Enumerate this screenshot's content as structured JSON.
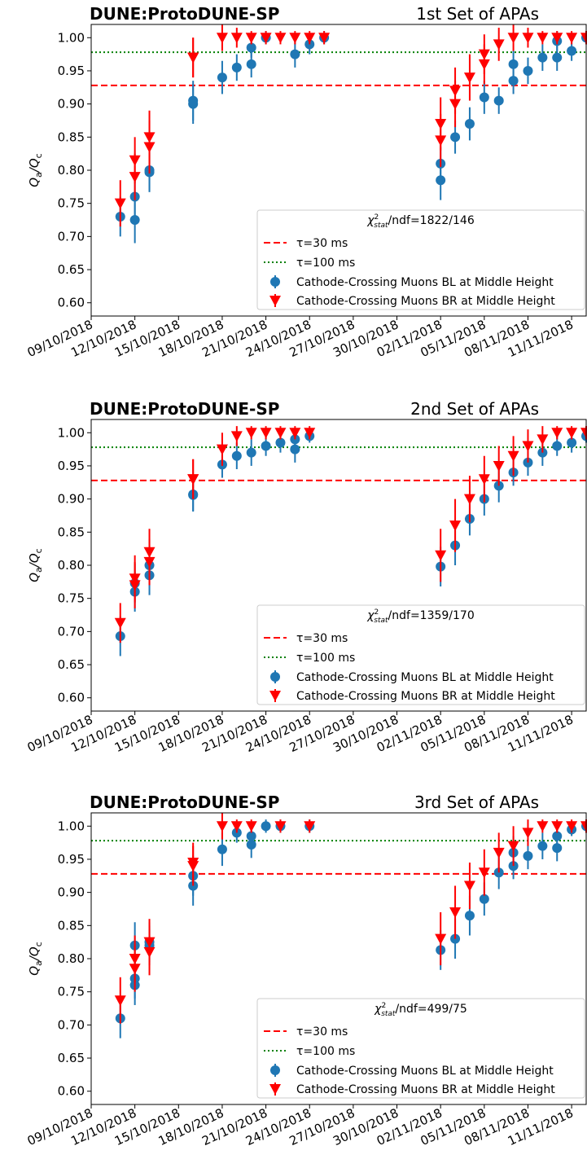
{
  "chart_data": [
    {
      "type": "scatter",
      "title": "DUNE:ProtoDUNE-SP",
      "subtitle": "1st Set of APAs",
      "ylabel": [
        "Q",
        "a",
        "/Q",
        "c"
      ],
      "xlim": [
        "09/10/2018",
        "12/11/2018"
      ],
      "xticks": [
        "09/10/2018",
        "12/10/2018",
        "15/10/2018",
        "18/10/2018",
        "21/10/2018",
        "24/10/2018",
        "27/10/2018",
        "30/10/2018",
        "02/11/2018",
        "05/11/2018",
        "08/11/2018",
        "11/11/2018"
      ],
      "ylim": [
        0.58,
        1.02
      ],
      "yticks": [
        {
          "value": 0.6,
          "label": "0.60"
        },
        0.65,
        {
          "value": 0.7,
          "label": "0.70"
        },
        0.75,
        {
          "value": 0.8,
          "label": "0.80"
        },
        0.85,
        {
          "value": 0.9,
          "label": "0.90"
        },
        0.95,
        {
          "value": 1.0,
          "label": "1.00"
        }
      ],
      "legend": "lower right",
      "annotation": {
        "symbol": "χ",
        "sup": "2",
        "sub": "stat",
        "text": "/ndf=1822/146"
      },
      "hlines": [
        {
          "name": "τ=30 ms",
          "value": 0.928,
          "color": "red",
          "style": "dashed"
        },
        {
          "name": "τ=100 ms",
          "value": 0.978,
          "color": "green",
          "style": "dotted"
        }
      ],
      "series": [
        {
          "name": "Cathode-Crossing Muons BL at Middle Height",
          "color": "#1f77b4",
          "marker": "circle",
          "x": [
            "11/10/2018",
            "12/10/2018",
            "12/10/2018",
            "13/10/2018",
            "13/10/2018",
            "16/10/2018",
            "16/10/2018",
            "18/10/2018",
            "19/10/2018",
            "20/10/2018",
            "20/10/2018",
            "21/10/2018",
            "23/10/2018",
            "24/10/2018",
            "25/10/2018",
            "02/11/2018",
            "02/11/2018",
            "03/11/2018",
            "04/11/2018",
            "05/11/2018",
            "06/11/2018",
            "07/11/2018",
            "07/11/2018",
            "08/11/2018",
            "09/11/2018",
            "10/11/2018",
            "10/11/2018",
            "11/11/2018",
            "12/11/2018"
          ],
          "values": [
            0.73,
            0.725,
            0.76,
            0.8,
            0.797,
            0.9,
            0.905,
            0.94,
            0.955,
            0.96,
            0.985,
            1.0,
            0.975,
            0.99,
            1.0,
            0.785,
            0.81,
            0.85,
            0.87,
            0.91,
            0.905,
            0.935,
            0.96,
            0.95,
            0.97,
            0.995,
            0.97,
            0.98,
            1.0
          ],
          "errors": [
            0.03,
            0.035,
            0.03,
            0.03,
            0.03,
            0.03,
            0.03,
            0.025,
            0.02,
            0.02,
            0.015,
            0.01,
            0.02,
            0.015,
            0.01,
            0.03,
            0.025,
            0.025,
            0.025,
            0.025,
            0.02,
            0.02,
            0.02,
            0.02,
            0.02,
            0.015,
            0.02,
            0.015,
            0.01
          ]
        },
        {
          "name": "Cathode-Crossing Muons BR at Middle Height",
          "color": "red",
          "marker": "triangle",
          "x": [
            "11/10/2018",
            "12/10/2018",
            "12/10/2018",
            "13/10/2018",
            "13/10/2018",
            "16/10/2018",
            "16/10/2018",
            "18/10/2018",
            "19/10/2018",
            "20/10/2018",
            "21/10/2018",
            "22/10/2018",
            "23/10/2018",
            "24/10/2018",
            "25/10/2018",
            "02/11/2018",
            "02/11/2018",
            "03/11/2018",
            "03/11/2018",
            "04/11/2018",
            "05/11/2018",
            "05/11/2018",
            "06/11/2018",
            "07/11/2018",
            "08/11/2018",
            "09/11/2018",
            "10/11/2018",
            "11/11/2018",
            "12/11/2018"
          ],
          "values": [
            0.75,
            0.79,
            0.815,
            0.85,
            0.835,
            0.97,
            0.97,
            1.0,
            1.0,
            1.0,
            1.0,
            1.0,
            1.0,
            1.0,
            1.0,
            0.845,
            0.87,
            0.9,
            0.92,
            0.94,
            0.96,
            0.975,
            0.99,
            1.0,
            1.0,
            1.0,
            1.0,
            1.0,
            1.0
          ],
          "errors": [
            0.035,
            0.035,
            0.035,
            0.04,
            0.04,
            0.03,
            0.03,
            0.02,
            0.015,
            0.01,
            0.01,
            0.01,
            0.01,
            0.01,
            0.01,
            0.04,
            0.04,
            0.035,
            0.035,
            0.035,
            0.03,
            0.03,
            0.025,
            0.02,
            0.015,
            0.01,
            0.01,
            0.01,
            0.01
          ]
        }
      ]
    },
    {
      "type": "scatter",
      "title": "DUNE:ProtoDUNE-SP",
      "subtitle": "2nd Set of APAs",
      "ylabel": [
        "Q",
        "a",
        "/Q",
        "c"
      ],
      "xlim": [
        "09/10/2018",
        "12/11/2018"
      ],
      "xticks": [
        "09/10/2018",
        "12/10/2018",
        "15/10/2018",
        "18/10/2018",
        "21/10/2018",
        "24/10/2018",
        "27/10/2018",
        "30/10/2018",
        "02/11/2018",
        "05/11/2018",
        "08/11/2018",
        "11/11/2018"
      ],
      "ylim": [
        0.58,
        1.02
      ],
      "yticks": [
        {
          "value": 0.6,
          "label": "0.60"
        },
        0.65,
        {
          "value": 0.7,
          "label": "0.70"
        },
        0.75,
        {
          "value": 0.8,
          "label": "0.80"
        },
        0.85,
        {
          "value": 0.9,
          "label": "0.90"
        },
        0.95,
        {
          "value": 1.0,
          "label": "1.00"
        }
      ],
      "legend": "lower right",
      "annotation": {
        "symbol": "χ",
        "sup": "2",
        "sub": "stat",
        "text": "/ndf=1359/170"
      },
      "hlines": [
        {
          "name": "τ=30 ms",
          "value": 0.928,
          "color": "red",
          "style": "dashed"
        },
        {
          "name": "τ=100 ms",
          "value": 0.978,
          "color": "green",
          "style": "dotted"
        }
      ],
      "series": [
        {
          "name": "Cathode-Crossing Muons BL at Middle Height",
          "color": "#1f77b4",
          "marker": "circle",
          "x": [
            "11/10/2018",
            "12/10/2018",
            "12/10/2018",
            "13/10/2018",
            "13/10/2018",
            "16/10/2018",
            "16/10/2018",
            "18/10/2018",
            "19/10/2018",
            "20/10/2018",
            "21/10/2018",
            "22/10/2018",
            "23/10/2018",
            "23/10/2018",
            "24/10/2018",
            "02/11/2018",
            "03/11/2018",
            "04/11/2018",
            "05/11/2018",
            "06/11/2018",
            "07/11/2018",
            "08/11/2018",
            "09/11/2018",
            "10/11/2018",
            "11/11/2018",
            "12/11/2018"
          ],
          "values": [
            0.693,
            0.773,
            0.76,
            0.785,
            0.8,
            0.906,
            0.907,
            0.952,
            0.965,
            0.97,
            0.98,
            0.985,
            0.99,
            0.975,
            0.995,
            0.798,
            0.83,
            0.87,
            0.9,
            0.92,
            0.94,
            0.955,
            0.97,
            0.98,
            0.985,
            0.995
          ],
          "errors": [
            0.03,
            0.03,
            0.03,
            0.03,
            0.03,
            0.025,
            0.025,
            0.02,
            0.02,
            0.02,
            0.015,
            0.015,
            0.015,
            0.02,
            0.01,
            0.03,
            0.03,
            0.025,
            0.025,
            0.025,
            0.02,
            0.02,
            0.02,
            0.015,
            0.015,
            0.01
          ]
        },
        {
          "name": "Cathode-Crossing Muons BR at Middle Height",
          "color": "red",
          "marker": "triangle",
          "x": [
            "11/10/2018",
            "12/10/2018",
            "12/10/2018",
            "13/10/2018",
            "13/10/2018",
            "16/10/2018",
            "16/10/2018",
            "18/10/2018",
            "19/10/2018",
            "20/10/2018",
            "21/10/2018",
            "22/10/2018",
            "23/10/2018",
            "24/10/2018",
            "02/11/2018",
            "03/11/2018",
            "04/11/2018",
            "05/11/2018",
            "06/11/2018",
            "07/11/2018",
            "08/11/2018",
            "09/11/2018",
            "10/11/2018",
            "11/11/2018",
            "12/11/2018"
          ],
          "values": [
            0.713,
            0.78,
            0.77,
            0.805,
            0.82,
            0.93,
            0.93,
            0.975,
            0.995,
            1.0,
            1.0,
            1.0,
            1.0,
            1.0,
            0.815,
            0.86,
            0.9,
            0.93,
            0.95,
            0.965,
            0.98,
            0.99,
            1.0,
            1.0,
            1.0
          ],
          "errors": [
            0.03,
            0.035,
            0.035,
            0.035,
            0.035,
            0.03,
            0.03,
            0.025,
            0.015,
            0.01,
            0.01,
            0.01,
            0.01,
            0.01,
            0.04,
            0.04,
            0.035,
            0.035,
            0.03,
            0.03,
            0.025,
            0.02,
            0.01,
            0.01,
            0.01
          ]
        }
      ]
    },
    {
      "type": "scatter",
      "title": "DUNE:ProtoDUNE-SP",
      "subtitle": "3rd Set of APAs",
      "ylabel": [
        "Q",
        "a",
        "/Q",
        "c"
      ],
      "xlim": [
        "09/10/2018",
        "12/11/2018"
      ],
      "xticks": [
        "09/10/2018",
        "12/10/2018",
        "15/10/2018",
        "18/10/2018",
        "21/10/2018",
        "24/10/2018",
        "27/10/2018",
        "30/10/2018",
        "02/11/2018",
        "05/11/2018",
        "08/11/2018",
        "11/11/2018"
      ],
      "ylim": [
        0.58,
        1.02
      ],
      "yticks": [
        {
          "value": 0.6,
          "label": "0.60"
        },
        0.65,
        {
          "value": 0.7,
          "label": "0.70"
        },
        0.75,
        {
          "value": 0.8,
          "label": "0.80"
        },
        0.85,
        {
          "value": 0.9,
          "label": "0.90"
        },
        0.95,
        {
          "value": 1.0,
          "label": "1.00"
        }
      ],
      "legend": "lower right",
      "annotation": {
        "symbol": "χ",
        "sup": "2",
        "sub": "stat",
        "text": "/ndf=499/75"
      },
      "hlines": [
        {
          "name": "τ=30 ms",
          "value": 0.928,
          "color": "red",
          "style": "dashed"
        },
        {
          "name": "τ=100 ms",
          "value": 0.978,
          "color": "green",
          "style": "dotted"
        }
      ],
      "series": [
        {
          "name": "Cathode-Crossing Muons BL at Middle Height",
          "color": "#1f77b4",
          "marker": "circle",
          "x": [
            "11/10/2018",
            "12/10/2018",
            "12/10/2018",
            "12/10/2018",
            "13/10/2018",
            "13/10/2018",
            "16/10/2018",
            "16/10/2018",
            "18/10/2018",
            "19/10/2018",
            "20/10/2018",
            "20/10/2018",
            "21/10/2018",
            "22/10/2018",
            "24/10/2018",
            "02/11/2018",
            "03/11/2018",
            "04/11/2018",
            "05/11/2018",
            "06/11/2018",
            "07/11/2018",
            "07/11/2018",
            "08/11/2018",
            "09/11/2018",
            "10/11/2018",
            "10/11/2018",
            "11/11/2018",
            "12/11/2018"
          ],
          "values": [
            0.71,
            0.76,
            0.82,
            0.77,
            0.82,
            0.825,
            0.91,
            0.925,
            0.965,
            0.99,
            0.972,
            0.985,
            1.0,
            1.0,
            1.0,
            0.813,
            0.83,
            0.865,
            0.89,
            0.93,
            0.96,
            0.94,
            0.955,
            0.97,
            0.985,
            0.967,
            0.995,
            1.0
          ],
          "errors": [
            0.03,
            0.03,
            0.035,
            0.03,
            0.03,
            0.03,
            0.03,
            0.03,
            0.025,
            0.015,
            0.02,
            0.015,
            0.01,
            0.01,
            0.01,
            0.03,
            0.03,
            0.03,
            0.025,
            0.025,
            0.025,
            0.02,
            0.02,
            0.02,
            0.015,
            0.02,
            0.01,
            0.01
          ]
        },
        {
          "name": "Cathode-Crossing Muons BR at Middle Height",
          "color": "red",
          "marker": "triangle",
          "x": [
            "11/10/2018",
            "12/10/2018",
            "12/10/2018",
            "13/10/2018",
            "13/10/2018",
            "16/10/2018",
            "16/10/2018",
            "18/10/2018",
            "19/10/2018",
            "20/10/2018",
            "22/10/2018",
            "24/10/2018",
            "02/11/2018",
            "03/11/2018",
            "04/11/2018",
            "05/11/2018",
            "06/11/2018",
            "07/11/2018",
            "08/11/2018",
            "09/11/2018",
            "10/11/2018",
            "11/11/2018",
            "12/11/2018"
          ],
          "values": [
            0.737,
            0.785,
            0.8,
            0.81,
            0.825,
            0.94,
            0.945,
            1.0,
            1.0,
            1.0,
            1.0,
            1.0,
            0.83,
            0.87,
            0.91,
            0.93,
            0.96,
            0.97,
            0.99,
            1.0,
            1.0,
            1.0,
            1.0
          ],
          "errors": [
            0.035,
            0.035,
            0.035,
            0.035,
            0.035,
            0.03,
            0.03,
            0.02,
            0.01,
            0.01,
            0.01,
            0.01,
            0.04,
            0.04,
            0.035,
            0.035,
            0.03,
            0.03,
            0.02,
            0.01,
            0.01,
            0.01,
            0.01
          ]
        }
      ]
    }
  ]
}
